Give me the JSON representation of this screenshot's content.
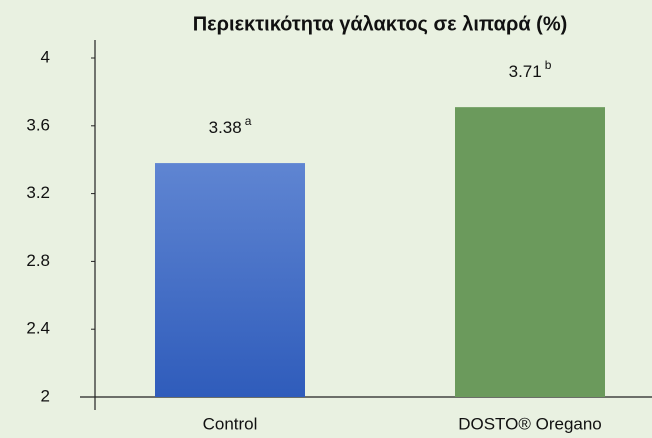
{
  "chart_data": {
    "type": "bar",
    "title": "Περιεκτικότητα γάλακτος σε λιπαρά (%)",
    "categories": [
      "Control",
      "DOSTO® Oregano"
    ],
    "values": [
      3.38,
      3.71
    ],
    "annotations": [
      "a",
      "b"
    ],
    "colors": [
      "#4a70c6",
      "#6b9a5c"
    ],
    "ylim": [
      2,
      4
    ],
    "yticks": [
      2,
      2.4,
      2.8,
      3.2,
      3.6,
      4
    ],
    "grid": false
  }
}
